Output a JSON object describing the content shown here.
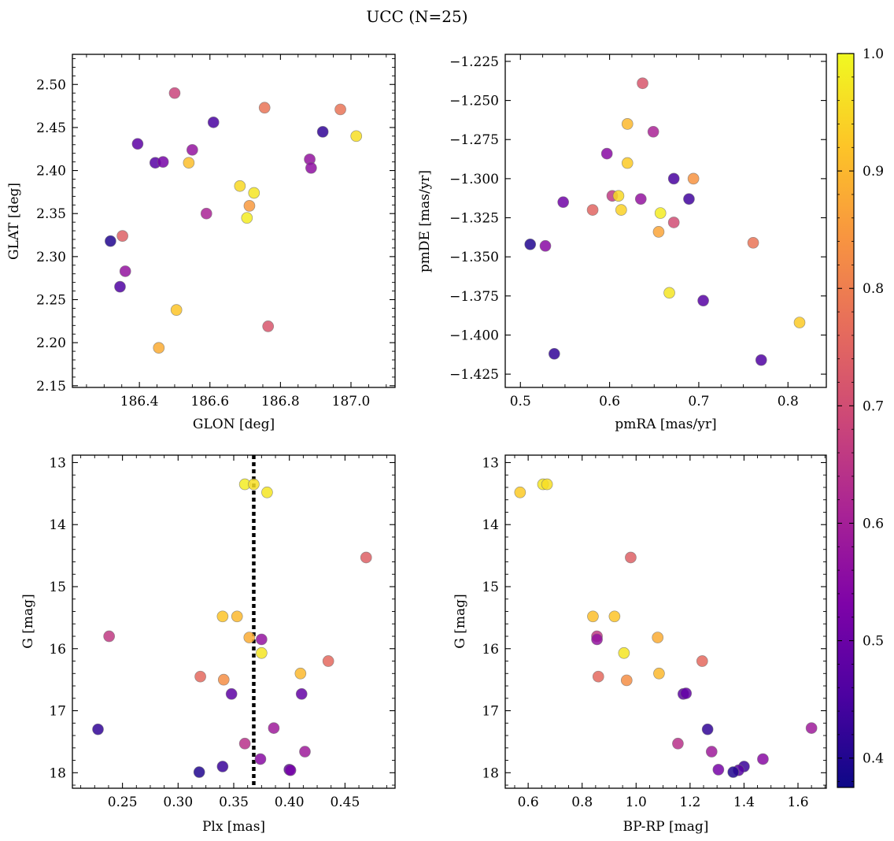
{
  "figure_title": "UCC (N=25)",
  "colorbar": {
    "ticks": [
      "0.4",
      "0.5",
      "0.6",
      "0.7",
      "0.8",
      "0.9",
      "1.0"
    ],
    "range": [
      0.375,
      1.0
    ],
    "colormap": "plasma"
  },
  "point_style": {
    "edgecolor": "#707070",
    "alpha": 0.85
  },
  "chart_data": [
    {
      "type": "scatter",
      "xlabel": "GLON [deg]",
      "ylabel": "GLAT [deg]",
      "xlim": [
        186.21,
        187.125
      ],
      "ylim": [
        2.148,
        2.535
      ],
      "y_inverted": false,
      "x_ticks": [
        "186.4",
        "186.6",
        "186.8",
        "187.0"
      ],
      "y_ticks": [
        "2.15",
        "2.20",
        "2.25",
        "2.30",
        "2.35",
        "2.40",
        "2.45",
        "2.50"
      ],
      "points": [
        {
          "x": 186.5,
          "y": 2.49,
          "c": 0.68
        },
        {
          "x": 186.61,
          "y": 2.456,
          "c": 0.45
        },
        {
          "x": 186.755,
          "y": 2.473,
          "c": 0.78
        },
        {
          "x": 186.97,
          "y": 2.471,
          "c": 0.78
        },
        {
          "x": 186.92,
          "y": 2.445,
          "c": 0.42
        },
        {
          "x": 187.015,
          "y": 2.44,
          "c": 0.96
        },
        {
          "x": 186.395,
          "y": 2.431,
          "c": 0.48
        },
        {
          "x": 186.55,
          "y": 2.424,
          "c": 0.57
        },
        {
          "x": 186.445,
          "y": 2.409,
          "c": 0.47
        },
        {
          "x": 186.467,
          "y": 2.41,
          "c": 0.52
        },
        {
          "x": 186.54,
          "y": 2.409,
          "c": 0.91
        },
        {
          "x": 186.883,
          "y": 2.413,
          "c": 0.57
        },
        {
          "x": 186.887,
          "y": 2.403,
          "c": 0.56
        },
        {
          "x": 186.685,
          "y": 2.382,
          "c": 0.95
        },
        {
          "x": 186.725,
          "y": 2.374,
          "c": 0.97
        },
        {
          "x": 186.712,
          "y": 2.359,
          "c": 0.85
        },
        {
          "x": 186.59,
          "y": 2.35,
          "c": 0.61
        },
        {
          "x": 186.705,
          "y": 2.345,
          "c": 0.98
        },
        {
          "x": 186.352,
          "y": 2.324,
          "c": 0.74
        },
        {
          "x": 186.318,
          "y": 2.318,
          "c": 0.4
        },
        {
          "x": 186.36,
          "y": 2.283,
          "c": 0.57
        },
        {
          "x": 186.345,
          "y": 2.265,
          "c": 0.46
        },
        {
          "x": 186.505,
          "y": 2.238,
          "c": 0.92
        },
        {
          "x": 186.765,
          "y": 2.219,
          "c": 0.72
        },
        {
          "x": 186.455,
          "y": 2.194,
          "c": 0.88
        }
      ]
    },
    {
      "type": "scatter",
      "xlabel": "pmRA [mas/yr]",
      "ylabel": "pmDE [mas/yr]",
      "xlim": [
        0.483,
        0.843
      ],
      "ylim": [
        -1.4335,
        -1.2205
      ],
      "y_inverted": false,
      "x_ticks": [
        "0.5",
        "0.6",
        "0.7",
        "0.8"
      ],
      "y_ticks": [
        "−1.225",
        "−1.250",
        "−1.275",
        "−1.300",
        "−1.325",
        "−1.350",
        "−1.375",
        "−1.400",
        "−1.425"
      ],
      "points": [
        {
          "x": 0.637,
          "y": -1.239,
          "c": 0.72
        },
        {
          "x": 0.62,
          "y": -1.265,
          "c": 0.9
        },
        {
          "x": 0.649,
          "y": -1.27,
          "c": 0.61
        },
        {
          "x": 0.597,
          "y": -1.284,
          "c": 0.55
        },
        {
          "x": 0.62,
          "y": -1.29,
          "c": 0.93
        },
        {
          "x": 0.672,
          "y": -1.3,
          "c": 0.45
        },
        {
          "x": 0.694,
          "y": -1.3,
          "c": 0.84
        },
        {
          "x": 0.603,
          "y": -1.311,
          "c": 0.66
        },
        {
          "x": 0.61,
          "y": -1.311,
          "c": 0.95
        },
        {
          "x": 0.635,
          "y": -1.313,
          "c": 0.57
        },
        {
          "x": 0.689,
          "y": -1.313,
          "c": 0.44
        },
        {
          "x": 0.548,
          "y": -1.315,
          "c": 0.51
        },
        {
          "x": 0.581,
          "y": -1.32,
          "c": 0.75
        },
        {
          "x": 0.613,
          "y": -1.32,
          "c": 0.94
        },
        {
          "x": 0.657,
          "y": -1.322,
          "c": 0.98
        },
        {
          "x": 0.672,
          "y": -1.328,
          "c": 0.7
        },
        {
          "x": 0.655,
          "y": -1.334,
          "c": 0.87
        },
        {
          "x": 0.511,
          "y": -1.342,
          "c": 0.4
        },
        {
          "x": 0.528,
          "y": -1.343,
          "c": 0.55
        },
        {
          "x": 0.761,
          "y": -1.341,
          "c": 0.78
        },
        {
          "x": 0.667,
          "y": -1.373,
          "c": 0.97
        },
        {
          "x": 0.705,
          "y": -1.378,
          "c": 0.47
        },
        {
          "x": 0.813,
          "y": -1.392,
          "c": 0.93
        },
        {
          "x": 0.538,
          "y": -1.412,
          "c": 0.42
        },
        {
          "x": 0.77,
          "y": -1.416,
          "c": 0.46
        }
      ]
    },
    {
      "type": "scatter",
      "xlabel": "Plx [mas]",
      "ylabel": "G [mag]",
      "xlim": [
        0.205,
        0.495
      ],
      "ylim": [
        12.88,
        18.25
      ],
      "y_inverted": true,
      "vline": 0.368,
      "x_ticks": [
        "0.25",
        "0.30",
        "0.35",
        "0.40",
        "0.45"
      ],
      "y_ticks": [
        "13",
        "14",
        "15",
        "16",
        "17",
        "18"
      ],
      "points": [
        {
          "x": 0.36,
          "y": 13.35,
          "c": 0.98
        },
        {
          "x": 0.368,
          "y": 13.35,
          "c": 0.96
        },
        {
          "x": 0.38,
          "y": 13.48,
          "c": 0.97
        },
        {
          "x": 0.469,
          "y": 14.53,
          "c": 0.74
        },
        {
          "x": 0.34,
          "y": 15.48,
          "c": 0.92
        },
        {
          "x": 0.353,
          "y": 15.48,
          "c": 0.9
        },
        {
          "x": 0.238,
          "y": 15.8,
          "c": 0.66
        },
        {
          "x": 0.364,
          "y": 15.82,
          "c": 0.88
        },
        {
          "x": 0.375,
          "y": 15.85,
          "c": 0.57
        },
        {
          "x": 0.375,
          "y": 16.07,
          "c": 0.97
        },
        {
          "x": 0.435,
          "y": 16.2,
          "c": 0.76
        },
        {
          "x": 0.41,
          "y": 16.4,
          "c": 0.9
        },
        {
          "x": 0.32,
          "y": 16.45,
          "c": 0.76
        },
        {
          "x": 0.341,
          "y": 16.5,
          "c": 0.83
        },
        {
          "x": 0.348,
          "y": 16.73,
          "c": 0.48
        },
        {
          "x": 0.411,
          "y": 16.73,
          "c": 0.49
        },
        {
          "x": 0.228,
          "y": 17.3,
          "c": 0.42
        },
        {
          "x": 0.386,
          "y": 17.28,
          "c": 0.59
        },
        {
          "x": 0.36,
          "y": 17.53,
          "c": 0.64
        },
        {
          "x": 0.414,
          "y": 17.66,
          "c": 0.59
        },
        {
          "x": 0.374,
          "y": 17.78,
          "c": 0.55
        },
        {
          "x": 0.34,
          "y": 17.9,
          "c": 0.43
        },
        {
          "x": 0.4,
          "y": 17.95,
          "c": 0.47
        },
        {
          "x": 0.401,
          "y": 17.96,
          "c": 0.52
        },
        {
          "x": 0.319,
          "y": 17.99,
          "c": 0.4
        }
      ]
    },
    {
      "type": "scatter",
      "xlabel": "BP-RP [mag]",
      "ylabel": "G [mag]",
      "xlim": [
        0.515,
        1.705
      ],
      "ylim": [
        12.88,
        18.25
      ],
      "y_inverted": true,
      "x_ticks": [
        "0.6",
        "0.8",
        "1.0",
        "1.2",
        "1.4",
        "1.6"
      ],
      "y_ticks": [
        "13",
        "14",
        "15",
        "16",
        "17",
        "18"
      ],
      "points": [
        {
          "x": 0.57,
          "y": 13.48,
          "c": 0.93
        },
        {
          "x": 0.655,
          "y": 13.35,
          "c": 0.97
        },
        {
          "x": 0.67,
          "y": 13.35,
          "c": 0.96
        },
        {
          "x": 0.98,
          "y": 14.53,
          "c": 0.74
        },
        {
          "x": 0.84,
          "y": 15.48,
          "c": 0.91
        },
        {
          "x": 0.92,
          "y": 15.48,
          "c": 0.92
        },
        {
          "x": 0.855,
          "y": 15.8,
          "c": 0.66
        },
        {
          "x": 0.855,
          "y": 15.85,
          "c": 0.57
        },
        {
          "x": 1.08,
          "y": 15.82,
          "c": 0.88
        },
        {
          "x": 0.955,
          "y": 16.07,
          "c": 0.97
        },
        {
          "x": 1.245,
          "y": 16.2,
          "c": 0.76
        },
        {
          "x": 1.085,
          "y": 16.4,
          "c": 0.9
        },
        {
          "x": 0.86,
          "y": 16.45,
          "c": 0.76
        },
        {
          "x": 0.965,
          "y": 16.51,
          "c": 0.83
        },
        {
          "x": 1.175,
          "y": 16.73,
          "c": 0.48
        },
        {
          "x": 1.185,
          "y": 16.72,
          "c": 0.49
        },
        {
          "x": 1.65,
          "y": 17.28,
          "c": 0.59
        },
        {
          "x": 1.265,
          "y": 17.3,
          "c": 0.42
        },
        {
          "x": 1.155,
          "y": 17.53,
          "c": 0.64
        },
        {
          "x": 1.28,
          "y": 17.66,
          "c": 0.59
        },
        {
          "x": 1.47,
          "y": 17.78,
          "c": 0.55
        },
        {
          "x": 1.4,
          "y": 17.9,
          "c": 0.43
        },
        {
          "x": 1.305,
          "y": 17.95,
          "c": 0.52
        },
        {
          "x": 1.38,
          "y": 17.96,
          "c": 0.47
        },
        {
          "x": 1.36,
          "y": 17.99,
          "c": 0.4
        }
      ]
    }
  ]
}
